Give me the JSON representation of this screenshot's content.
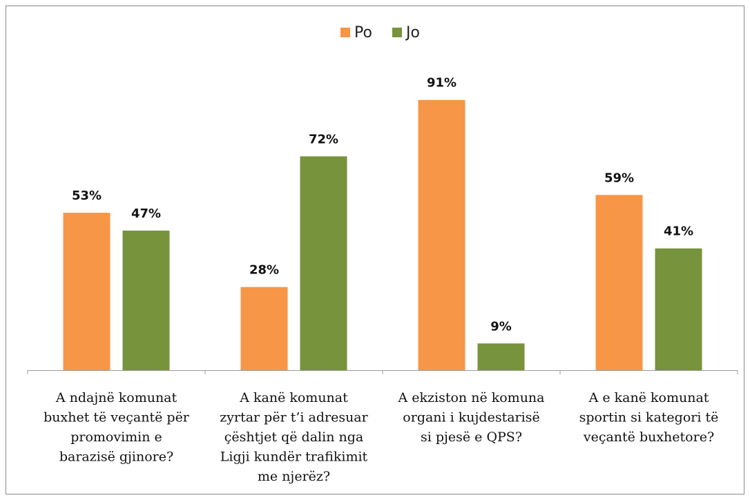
{
  "chart_data": {
    "type": "bar",
    "categories": [
      [
        "A ndajnë komunat",
        "buxhet të veçantë për",
        "promovimin e",
        "barazisë gjinore?"
      ],
      [
        "A kanë komunat",
        "zyrtar për t’i adresuar",
        "çështjet që dalin nga",
        "Ligji kundër trafikimit",
        "me njerëz?"
      ],
      [
        "A ekziston në komuna",
        "organi i kujdestarisë",
        "si pjesë e QPS?"
      ],
      [
        "A e kanë komunat",
        "sportin si kategori të",
        "veçantë buxhetore?"
      ]
    ],
    "series": [
      {
        "name": "Po",
        "color": "#f79646",
        "values": [
          53,
          28,
          91,
          59
        ],
        "value_labels": [
          "53%",
          "28%",
          "91%",
          "59%"
        ]
      },
      {
        "name": "Jo",
        "color": "#77933c",
        "values": [
          47,
          72,
          9,
          41
        ],
        "value_labels": [
          "47%",
          "72%",
          "9%",
          "41%"
        ]
      }
    ],
    "ylim": [
      0,
      100
    ],
    "legend": "top"
  }
}
